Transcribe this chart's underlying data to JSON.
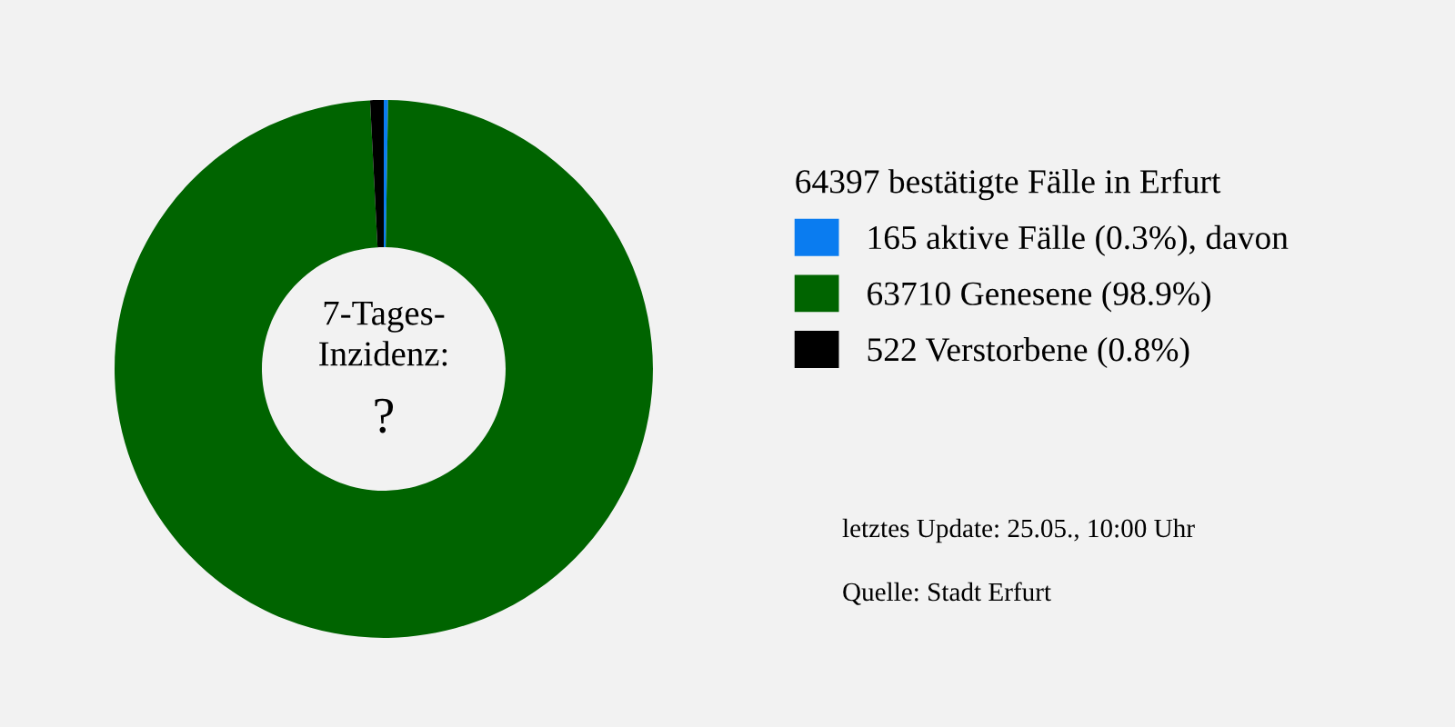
{
  "chart_data": {
    "type": "donut",
    "legend_title": "64397 bestätigte Fälle in Erfurt",
    "categories": [
      "165 aktive Fälle (0.3%), davon",
      "63710 Genesene (98.9%)",
      "522 Verstorbene (0.8%)"
    ],
    "values": [
      165,
      63710,
      522
    ],
    "colors": [
      "#0a7cf0",
      "#006400",
      "#000000"
    ],
    "legend": "right",
    "annotations": [
      "7-Tages-\nInzidenz:",
      "?",
      "letztes Update: 25.05., 10:00 Uhr",
      "Quelle: Stadt Erfurt"
    ]
  }
}
